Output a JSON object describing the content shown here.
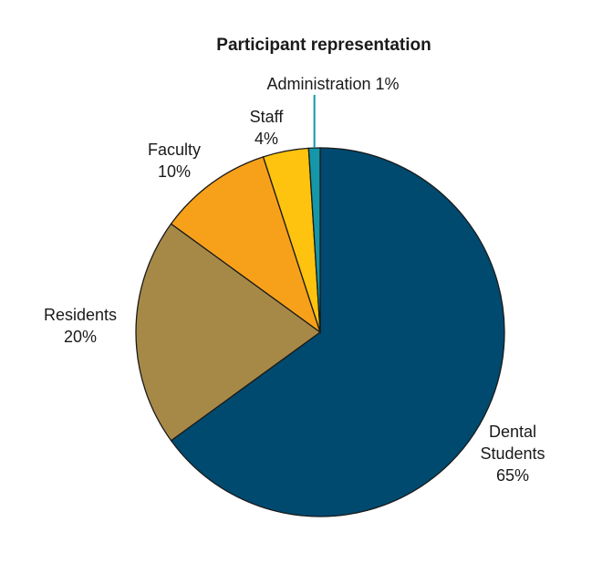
{
  "chart_data": {
    "type": "pie",
    "title": "Participant representation",
    "slices": [
      {
        "label": "Dental Students",
        "value": 65,
        "display": "65%",
        "color": "#004a70"
      },
      {
        "label": "Residents",
        "value": 20,
        "display": "20%",
        "color": "#a78947"
      },
      {
        "label": "Faculty",
        "value": 10,
        "display": "10%",
        "color": "#f7a11a"
      },
      {
        "label": "Staff",
        "value": 4,
        "display": "4%",
        "color": "#fdc30e"
      },
      {
        "label": "Administration",
        "value": 1,
        "display": "1%",
        "color": "#1497a8"
      }
    ],
    "leader_line_color": "#1497a8"
  }
}
